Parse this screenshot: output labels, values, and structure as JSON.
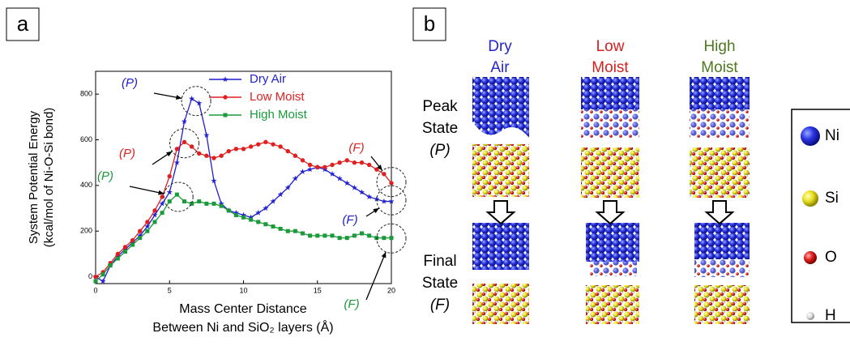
{
  "panel_labels": [
    "a",
    "b"
  ],
  "chart_data": {
    "type": "line",
    "x": [
      0,
      0.5,
      1,
      1.5,
      2,
      2.5,
      3,
      3.5,
      4,
      4.5,
      5,
      5.5,
      6,
      6.5,
      7,
      7.5,
      8,
      8.5,
      9,
      9.5,
      10,
      10.5,
      11,
      11.5,
      12,
      12.5,
      13,
      13.5,
      14,
      14.5,
      15,
      15.5,
      16,
      16.5,
      17,
      17.5,
      18,
      18.5,
      19,
      19.5,
      20
    ],
    "series": [
      {
        "name": "Dry Air",
        "color": "#1f1fd0",
        "marker": "star",
        "values": [
          0,
          -20,
          50,
          90,
          120,
          150,
          180,
          220,
          270,
          320,
          370,
          500,
          680,
          780,
          760,
          620,
          420,
          320,
          290,
          280,
          270,
          260,
          280,
          300,
          330,
          360,
          390,
          430,
          460,
          470,
          480,
          470,
          450,
          430,
          410,
          390,
          370,
          350,
          340,
          330,
          330
        ]
      },
      {
        "name": "Low Moist",
        "color": "#e02020",
        "marker": "circle",
        "values": [
          0,
          20,
          60,
          100,
          130,
          160,
          200,
          240,
          290,
          350,
          440,
          560,
          590,
          570,
          540,
          530,
          520,
          530,
          550,
          560,
          560,
          570,
          580,
          590,
          580,
          570,
          550,
          530,
          510,
          490,
          480,
          480,
          490,
          500,
          510,
          500,
          500,
          490,
          470,
          450,
          410
        ]
      },
      {
        "name": "High Moist",
        "color": "#1a9a3a",
        "marker": "square",
        "values": [
          -20,
          10,
          50,
          80,
          110,
          140,
          170,
          200,
          240,
          280,
          330,
          360,
          330,
          320,
          330,
          320,
          320,
          310,
          290,
          270,
          260,
          250,
          240,
          230,
          220,
          210,
          200,
          200,
          190,
          180,
          180,
          180,
          180,
          170,
          170,
          180,
          190,
          180,
          170,
          170,
          170
        ]
      }
    ],
    "xlim": [
      0,
      20
    ],
    "xticks": [
      0,
      5,
      10,
      15,
      20
    ],
    "ylim": [
      -30,
      900
    ],
    "yticks": [
      0,
      200,
      400,
      600,
      800
    ],
    "y_label": [
      "System Potential Energy",
      "(kcal/mol of Ni-O-Si bond)"
    ],
    "x_label": [
      "Mass Center Distance",
      "Between Ni and SiO₂ layers (Å)"
    ],
    "legend": "upper right",
    "annotations": [
      {
        "text": "(P)",
        "color": "#1f1fd0"
      },
      {
        "text": "(P)",
        "color": "#e02020"
      },
      {
        "text": "(P)",
        "color": "#1a9a3a"
      },
      {
        "text": "(F)",
        "color": "#e02020"
      },
      {
        "text": "(F)",
        "color": "#1f1fd0"
      },
      {
        "text": "(F)",
        "color": "#1a9a3a"
      }
    ]
  },
  "diagram": {
    "columns": [
      {
        "lines": [
          "Dry",
          "Air"
        ],
        "color": "#2626c8"
      },
      {
        "lines": [
          "Low",
          "Moist"
        ],
        "color": "#d42020"
      },
      {
        "lines": [
          "High",
          "Moist"
        ],
        "color": "#4d7a1f"
      }
    ],
    "rows": [
      {
        "lines": [
          "Peak",
          "State",
          "(P)"
        ]
      },
      {
        "lines": [
          "Final",
          "State",
          "(F)"
        ]
      }
    ],
    "legend": [
      {
        "label": "Ni",
        "color": "#2030e0"
      },
      {
        "label": "Si",
        "color": "#e8e020"
      },
      {
        "label": "O",
        "color": "#e02020"
      },
      {
        "label": "H",
        "color": "#e8e8e8"
      }
    ]
  }
}
